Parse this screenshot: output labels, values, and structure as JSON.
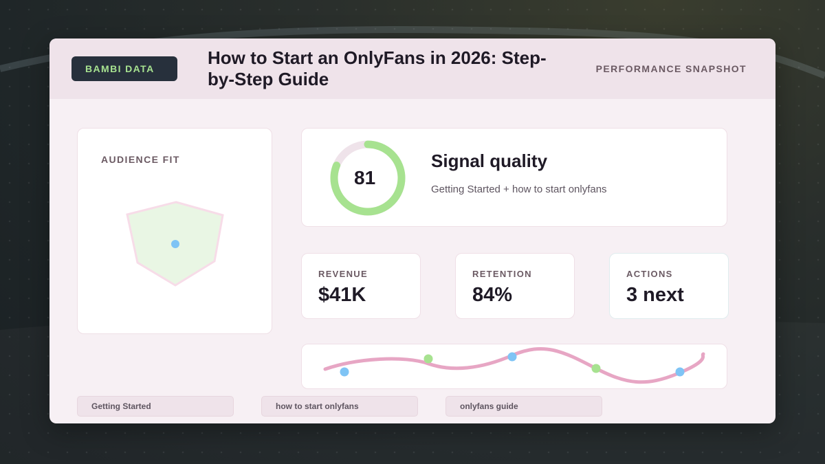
{
  "brand": {
    "label": "BAMBI DATA"
  },
  "header": {
    "title": "How to Start an OnlyFans in 2026: Step-by-Step Guide",
    "subtitle": "PERFORMANCE SNAPSHOT"
  },
  "audience": {
    "label": "AUDIENCE FIT"
  },
  "signal": {
    "score": "81",
    "score_fraction": 0.81,
    "title": "Signal quality",
    "subtitle": "Getting Started + how to start onlyfans"
  },
  "metrics": [
    {
      "label": "REVENUE",
      "value": "$41K"
    },
    {
      "label": "RETENTION",
      "value": "84%"
    },
    {
      "label": "ACTIONS",
      "value": "3 next"
    }
  ],
  "tags": [
    {
      "label": "Getting Started"
    },
    {
      "label": "how to start onlyfans"
    },
    {
      "label": "onlyfans guide"
    }
  ],
  "colors": {
    "brand_bg": "#27303c",
    "brand_text": "#a7e290",
    "gauge": "#a7e290",
    "trend_line": "#e7a6c4",
    "dot_blue": "#7fc4f5",
    "dot_green": "#a7e290"
  }
}
